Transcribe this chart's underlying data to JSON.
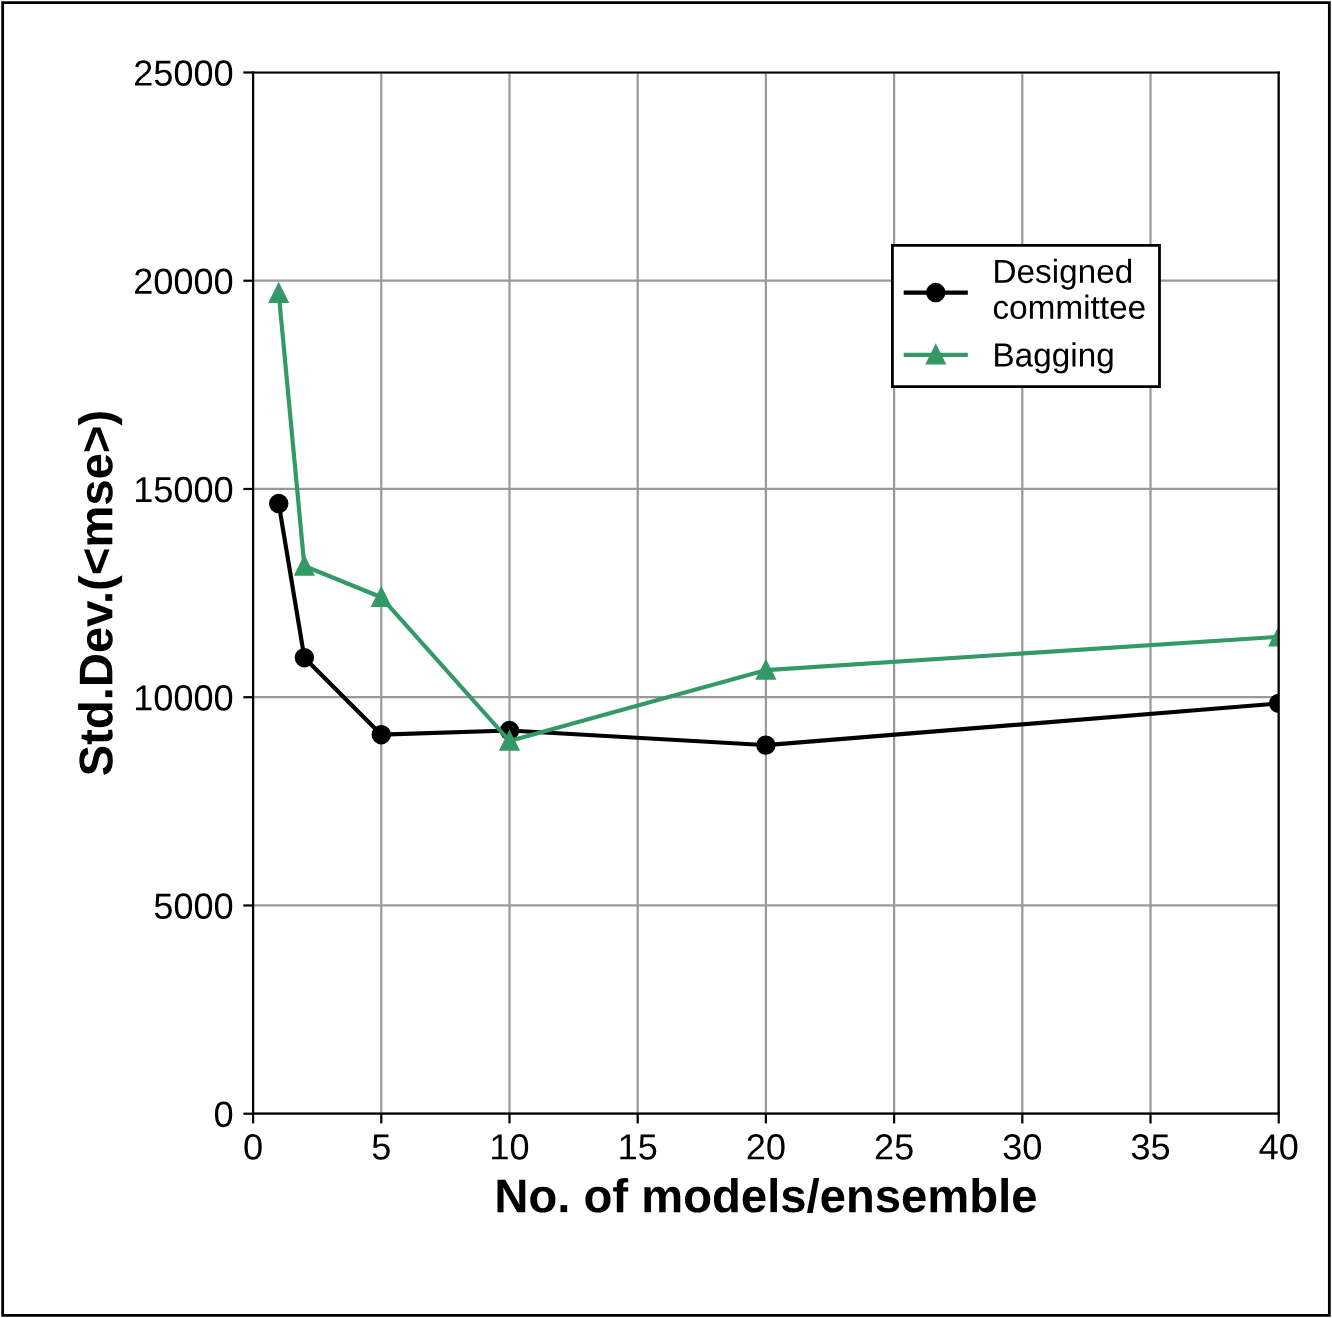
{
  "chart_data": {
    "type": "line",
    "xlabel": "No. of models/ensemble",
    "ylabel": "Std.Dev.(<mse>)",
    "xlim": [
      0,
      40
    ],
    "xticks": [
      0,
      5,
      10,
      15,
      20,
      25,
      30,
      35,
      40
    ],
    "ylim": [
      0,
      25000
    ],
    "yticks": [
      0,
      5000,
      10000,
      15000,
      20000,
      25000
    ],
    "grid": true,
    "legend": "top right",
    "series": [
      {
        "name": "Designed\ncommittee",
        "color": "#000000",
        "marker": "circle",
        "x": [
          1,
          2,
          5,
          10,
          20,
          40
        ],
        "values": [
          14650,
          10950,
          9100,
          9200,
          8850,
          9850
        ]
      },
      {
        "name": "Bagging",
        "color": "#339966",
        "marker": "triangle",
        "x": [
          1,
          2,
          5,
          10,
          20,
          40
        ],
        "values": [
          19700,
          13150,
          12400,
          8950,
          10650,
          11450
        ]
      }
    ]
  }
}
